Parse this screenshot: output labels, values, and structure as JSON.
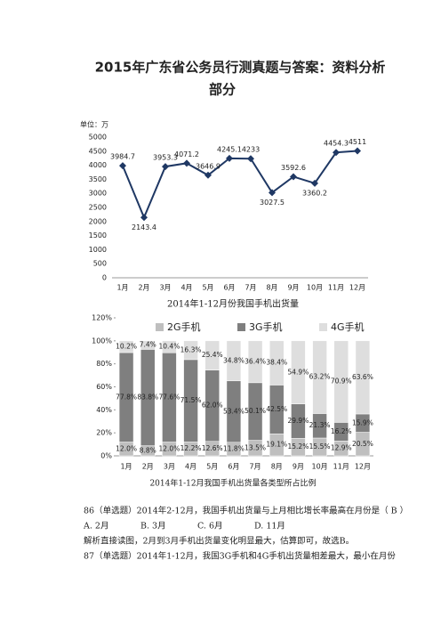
{
  "document": {
    "title": "2015年广东省公务员行测真题与答案：资料分析",
    "title_line2": "部分",
    "q86": "86（单选题）2014年2-12月，我国手机出货量与上月相比增长率最高在月份是（   B   ）",
    "q86_options": [
      "A. 2月",
      "B. 3月",
      "C. 6月",
      "D. 11月"
    ],
    "q86_explain": "解析直接读图，2月到3月手机出货量变化明显最大，估算即可，故选B。",
    "q87": "87（单选题）2014年1-12月，我国3G手机和4G手机出货量相差最大，最小在月份"
  },
  "chart_data": [
    {
      "type": "line",
      "unit_label": "单位：万",
      "title": "2014年1-12月份我国手机出货量",
      "categories": [
        "1月",
        "2月",
        "3月",
        "4月",
        "5月",
        "6月",
        "7月",
        "8月",
        "9月",
        "10月",
        "11月",
        "12月"
      ],
      "values": [
        3984.7,
        2143.4,
        3953.3,
        4071.2,
        3646.9,
        4245.1,
        4233,
        3027.5,
        3592.6,
        3360.2,
        4454.3,
        4511
      ],
      "color": "#1f3864",
      "ylim": [
        0,
        5000
      ],
      "yticks": [
        0,
        500,
        1000,
        1500,
        2000,
        2500,
        3000,
        3500,
        4000,
        4500,
        5000
      ],
      "grid": false
    },
    {
      "type": "stacked-bar",
      "title": "2014年1-12月我国手机出货量各类型所占比例",
      "categories": [
        "1月",
        "2月",
        "3月",
        "4月",
        "5月",
        "6月",
        "7月",
        "8月",
        "9月",
        "10月",
        "11月",
        "12月"
      ],
      "series": [
        {
          "name": "2G手机",
          "color": "#bfbfbf",
          "values": [
            12.0,
            8.8,
            12.0,
            12.2,
            12.6,
            11.8,
            13.5,
            19.1,
            15.2,
            15.5,
            12.9,
            20.5
          ],
          "value_labels": [
            "12.0%",
            "8.8%",
            "12.0%",
            "12.2%",
            "12.6%",
            "11.8%",
            "13.5%",
            "19.1%",
            "15.2%",
            "15.5%",
            "12.9%",
            "20.5%"
          ]
        },
        {
          "name": "3G手机",
          "color": "#7f7f7f",
          "values": [
            77.8,
            83.8,
            77.6,
            71.5,
            62.0,
            53.4,
            50.1,
            42.5,
            29.9,
            21.3,
            16.2,
            15.9
          ],
          "value_labels": [
            "77.8%",
            "83.8%",
            "77.6%",
            "71.5%",
            "62.0%",
            "53.4%",
            "50.1%",
            "42.5%",
            "29.9%",
            "21.3%",
            "16.2%",
            "15.9%"
          ]
        },
        {
          "name": "4G手机",
          "color": "#dedede",
          "values": [
            10.2,
            7.4,
            10.4,
            16.3,
            25.4,
            34.8,
            36.4,
            38.4,
            54.9,
            63.2,
            70.9,
            63.6
          ],
          "value_labels": [
            "10.2%",
            "7.4%",
            "10.4%",
            "16.3%",
            "25.4%",
            "34.8%",
            "36.4%",
            "38.4%",
            "54.9%",
            "63.2%",
            "70.9%",
            "63.6%"
          ]
        }
      ],
      "ylim": [
        0,
        120
      ],
      "yticks": [
        {
          "value": 0,
          "label": "0%"
        },
        {
          "value": 20,
          "label": "20%"
        },
        {
          "value": 40,
          "label": "40%"
        },
        {
          "value": 60,
          "label": "60%"
        },
        {
          "value": 80,
          "label": "80%"
        },
        {
          "value": 100,
          "label": "100%"
        },
        {
          "value": 120,
          "label": "120%"
        }
      ],
      "legend": "top"
    }
  ]
}
